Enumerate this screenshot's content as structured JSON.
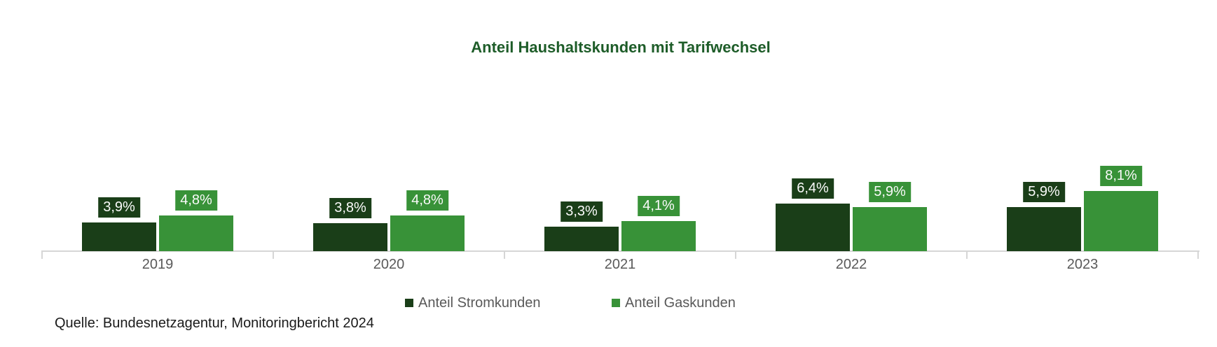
{
  "page": {
    "background": "#ffffff"
  },
  "chart_data": {
    "type": "bar",
    "title": "Anteil Haushaltskunden mit Tarifwechsel",
    "categories": [
      "2019",
      "2020",
      "2021",
      "2022",
      "2023"
    ],
    "series": [
      {
        "name": "Anteil Stromkunden",
        "color": "#1a3e18",
        "values": [
          3.9,
          3.8,
          3.3,
          6.4,
          5.9
        ],
        "labels": [
          "3,9%",
          "3,8%",
          "3,3%",
          "6,4%",
          "5,9%"
        ]
      },
      {
        "name": "Anteil Gaskunden",
        "color": "#389238",
        "values": [
          4.8,
          4.8,
          4.1,
          5.9,
          8.1
        ],
        "labels": [
          "4,8%",
          "4,8%",
          "4,1%",
          "5,9%",
          "8,1%"
        ]
      }
    ],
    "xlabel": "",
    "ylabel": "",
    "ylim": [
      0,
      8.5
    ],
    "grid": false,
    "y_axis_visible": false,
    "value_labels": "on-colored-boxes-above-bars",
    "legend_position": "bottom-center"
  },
  "source": {
    "text": "Quelle: Bundesnetzagentur, Monitoringbericht 2024"
  },
  "colors": {
    "title": "#1d5c28",
    "axis": "#d6d6d6",
    "axis_text": "#595959",
    "legend_text": "#595959",
    "source_text": "#1a1a1a",
    "value_label_text": "#fafafa",
    "background": "#ffffff"
  }
}
